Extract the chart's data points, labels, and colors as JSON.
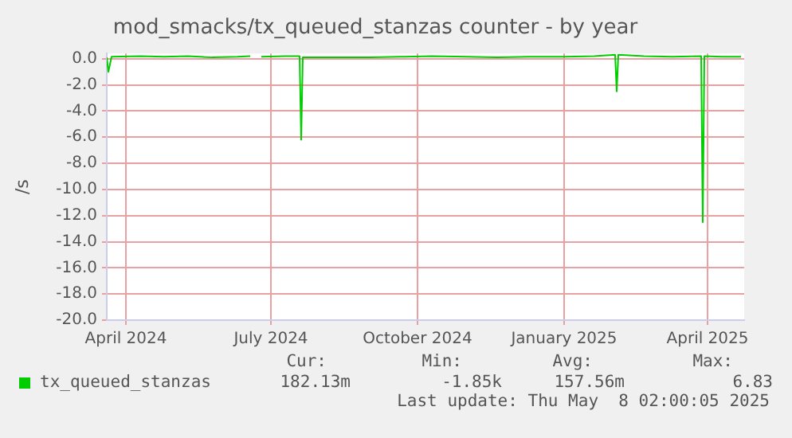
{
  "chart_data": {
    "type": "line",
    "title": "mod_smacks/tx_queued_stanzas counter - by year",
    "ylabel": "/s",
    "xlim": [
      "2024-03-20",
      "2025-04-24"
    ],
    "xticks": [
      {
        "value": "2024-04-01",
        "label": "April 2024"
      },
      {
        "value": "2024-07-01",
        "label": "July 2024"
      },
      {
        "value": "2024-10-01",
        "label": "October 2024"
      },
      {
        "value": "2025-01-01",
        "label": "January 2025"
      },
      {
        "value": "2025-04-01",
        "label": "April 2025"
      }
    ],
    "ylim": [
      -20,
      0.4
    ],
    "yticks": [
      {
        "value": 0,
        "label": "0.0"
      },
      {
        "value": -2,
        "label": "-2.0"
      },
      {
        "value": -4,
        "label": "-4.0"
      },
      {
        "value": -6,
        "label": "-6.0"
      },
      {
        "value": -8,
        "label": "-8.0"
      },
      {
        "value": -10,
        "label": "-10.0"
      },
      {
        "value": -12,
        "label": "-12.0"
      },
      {
        "value": -14,
        "label": "-14.0"
      },
      {
        "value": -16,
        "label": "-16.0"
      },
      {
        "value": -18,
        "label": "-18.0"
      },
      {
        "value": -20,
        "label": "-20.0"
      }
    ],
    "grid": true,
    "legend": "bottom",
    "marker": "none",
    "line_style": "solid",
    "series": [
      {
        "name": "tx_queued_stanzas",
        "color": "#00cc00",
        "x": [
          "2024-03-20",
          "2024-03-21",
          "2024-03-23",
          "2024-04-10",
          "2024-04-25",
          "2024-05-10",
          "2024-05-25",
          "2024-06-10",
          "2024-06-18",
          "2024-06-20",
          "2024-06-25",
          "2024-07-10",
          "2024-07-19",
          "2024-07-20",
          "2024-07-21",
          "2024-08-10",
          "2024-09-01",
          "2024-09-20",
          "2024-10-10",
          "2024-11-01",
          "2024-11-20",
          "2024-12-10",
          "2025-01-01",
          "2025-01-20",
          "2025-02-02",
          "2025-02-03",
          "2025-02-04",
          "2025-02-20",
          "2025-03-10",
          "2025-03-28",
          "2025-03-29",
          "2025-03-30",
          "2025-04-10",
          "2025-04-22"
        ],
        "values": [
          0.1,
          -1.0,
          0.15,
          0.2,
          0.15,
          0.2,
          0.1,
          0.15,
          0.2,
          null,
          0.15,
          0.2,
          0.2,
          -6.2,
          0.1,
          0.1,
          0.1,
          0.15,
          0.2,
          0.15,
          0.1,
          0.15,
          0.15,
          0.2,
          0.3,
          -2.5,
          0.3,
          0.2,
          0.15,
          0.2,
          -12.5,
          0.2,
          0.15,
          0.15
        ]
      }
    ],
    "annotations": [
      "Cur:",
      "182.13m",
      "Min:",
      "-1.85k",
      "Avg:",
      "157.56m",
      "Max:",
      "6.83",
      "Last update: Thu May  8 02:00:05 2025"
    ]
  }
}
